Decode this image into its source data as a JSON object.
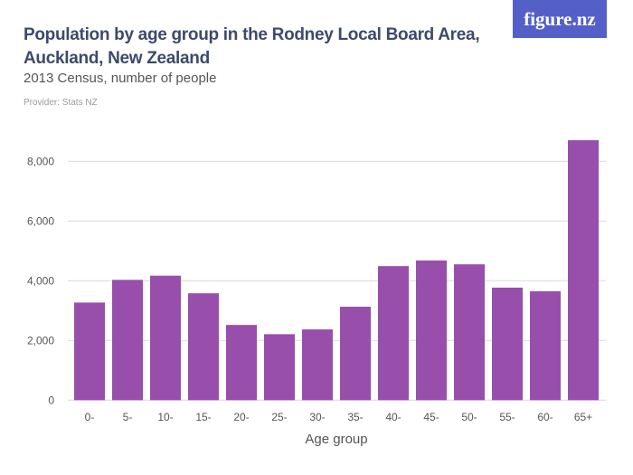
{
  "header": {
    "title": "Population by age group in the Rodney Local Board Area, Auckland, New Zealand",
    "subtitle": "2013 Census, number of people",
    "provider": "Provider: Stats NZ",
    "logo": "figure.nz"
  },
  "chart_data": {
    "type": "bar",
    "title": "Population by age group in the Rodney Local Board Area, Auckland, New Zealand",
    "subtitle": "2013 Census, number of people",
    "xlabel": "Age group",
    "ylabel": "",
    "categories": [
      "0-",
      "5-",
      "10-",
      "15-",
      "20-",
      "25-",
      "30-",
      "35-",
      "40-",
      "45-",
      "50-",
      "55-",
      "60-",
      "65+"
    ],
    "values": [
      3270,
      4030,
      4170,
      3580,
      2520,
      2210,
      2370,
      3130,
      4490,
      4680,
      4550,
      3770,
      3650,
      8710
    ],
    "ylim": [
      0,
      9000
    ],
    "yticks": [
      0,
      2000,
      4000,
      6000,
      8000
    ],
    "ytick_labels": [
      "0",
      "2,000",
      "4,000",
      "6,000",
      "8,000"
    ],
    "grid": true,
    "bar_color": "#984fac",
    "grid_color": "#d9d9d9"
  }
}
